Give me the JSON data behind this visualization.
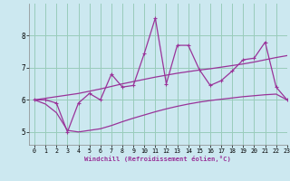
{
  "xlabel": "Windchill (Refroidissement éolien,°C)",
  "bg_color": "#cce8f0",
  "grid_color": "#99ccbb",
  "line_color": "#993399",
  "x_values": [
    0,
    1,
    2,
    3,
    4,
    5,
    6,
    7,
    8,
    9,
    10,
    11,
    12,
    13,
    14,
    15,
    16,
    17,
    18,
    19,
    20,
    21,
    22,
    23
  ],
  "y_main": [
    6.0,
    6.0,
    5.9,
    5.0,
    5.9,
    6.2,
    6.0,
    6.8,
    6.4,
    6.45,
    7.45,
    8.55,
    6.5,
    7.7,
    7.7,
    6.95,
    6.45,
    6.6,
    6.9,
    7.25,
    7.3,
    7.8,
    6.4,
    6.0
  ],
  "y_upper": [
    6.0,
    6.05,
    6.1,
    6.15,
    6.2,
    6.27,
    6.34,
    6.42,
    6.5,
    6.57,
    6.64,
    6.71,
    6.77,
    6.83,
    6.88,
    6.93,
    6.97,
    7.02,
    7.07,
    7.12,
    7.18,
    7.25,
    7.32,
    7.38
  ],
  "y_lower": [
    6.0,
    5.87,
    5.6,
    5.05,
    5.0,
    5.05,
    5.1,
    5.2,
    5.32,
    5.43,
    5.53,
    5.63,
    5.72,
    5.8,
    5.87,
    5.93,
    5.98,
    6.02,
    6.06,
    6.1,
    6.13,
    6.16,
    6.18,
    6.0
  ],
  "ylim": [
    4.6,
    9.0
  ],
  "xlim": [
    -0.5,
    23
  ],
  "yticks": [
    5,
    6,
    7,
    8
  ],
  "xticks": [
    0,
    1,
    2,
    3,
    4,
    5,
    6,
    7,
    8,
    9,
    10,
    11,
    12,
    13,
    14,
    15,
    16,
    17,
    18,
    19,
    20,
    21,
    22,
    23
  ]
}
